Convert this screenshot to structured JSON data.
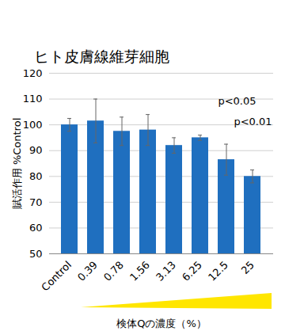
{
  "chart_data": {
    "type": "bar",
    "title": "ヒト皮膚線維芽細胞",
    "x_label": "検体Qの濃度（%）",
    "y_label": "賦活作用 %Control",
    "categories": [
      "Control",
      "0.39",
      "0.78",
      "1.56",
      "3.13",
      "6.25",
      "12.5",
      "25"
    ],
    "values": [
      100,
      101.5,
      97.5,
      98,
      92,
      95,
      86.5,
      80
    ],
    "errors": [
      2.5,
      8.5,
      5.5,
      6,
      3,
      1,
      6,
      2.5
    ],
    "color": "#1f6fbf",
    "ylim": [
      50,
      120
    ],
    "yticks": [
      50,
      60,
      70,
      80,
      90,
      100,
      110,
      120
    ],
    "grid": true,
    "annotations": [
      "p<0.05",
      "p<0.01"
    ]
  }
}
